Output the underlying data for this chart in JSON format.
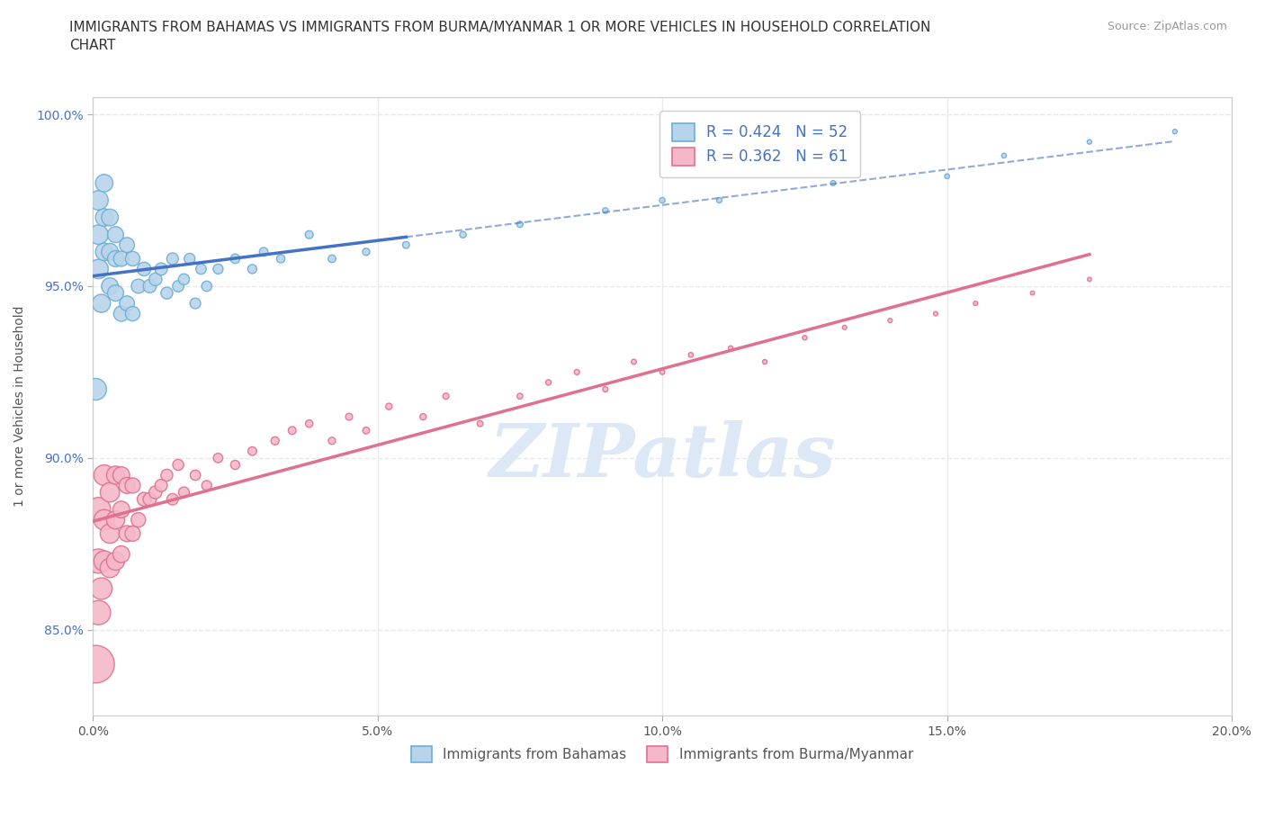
{
  "title": "IMMIGRANTS FROM BAHAMAS VS IMMIGRANTS FROM BURMA/MYANMAR 1 OR MORE VEHICLES IN HOUSEHOLD CORRELATION\nCHART",
  "source_text": "Source: ZipAtlas.com",
  "ylabel": "1 or more Vehicles in Household",
  "x_min": 0.0,
  "x_max": 0.2,
  "y_min": 0.825,
  "y_max": 1.005,
  "x_ticks": [
    0.0,
    0.05,
    0.1,
    0.15,
    0.2
  ],
  "x_tick_labels": [
    "0.0%",
    "5.0%",
    "10.0%",
    "15.0%",
    "20.0%"
  ],
  "y_ticks": [
    0.85,
    0.9,
    0.95,
    1.0
  ],
  "y_tick_labels": [
    "85.0%",
    "90.0%",
    "95.0%",
    "100.0%"
  ],
  "series_bahamas": {
    "name": "Immigrants from Bahamas",
    "color": "#b8d4ea",
    "border_color": "#6baed6",
    "R": 0.424,
    "N": 52,
    "line_color": "#4472c4",
    "x": [
      0.0005,
      0.001,
      0.001,
      0.001,
      0.0015,
      0.002,
      0.002,
      0.002,
      0.003,
      0.003,
      0.003,
      0.004,
      0.004,
      0.004,
      0.005,
      0.005,
      0.006,
      0.006,
      0.007,
      0.007,
      0.008,
      0.009,
      0.01,
      0.011,
      0.012,
      0.013,
      0.014,
      0.015,
      0.016,
      0.017,
      0.018,
      0.019,
      0.02,
      0.022,
      0.025,
      0.028,
      0.03,
      0.033,
      0.038,
      0.042,
      0.048,
      0.055,
      0.065,
      0.075,
      0.09,
      0.1,
      0.11,
      0.13,
      0.15,
      0.16,
      0.175,
      0.19
    ],
    "y": [
      0.92,
      0.955,
      0.965,
      0.975,
      0.945,
      0.96,
      0.97,
      0.98,
      0.95,
      0.96,
      0.97,
      0.948,
      0.958,
      0.965,
      0.942,
      0.958,
      0.945,
      0.962,
      0.942,
      0.958,
      0.95,
      0.955,
      0.95,
      0.952,
      0.955,
      0.948,
      0.958,
      0.95,
      0.952,
      0.958,
      0.945,
      0.955,
      0.95,
      0.955,
      0.958,
      0.955,
      0.96,
      0.958,
      0.965,
      0.958,
      0.96,
      0.962,
      0.965,
      0.968,
      0.972,
      0.975,
      0.975,
      0.98,
      0.982,
      0.988,
      0.992,
      0.995
    ],
    "sizes": [
      200,
      160,
      160,
      160,
      140,
      130,
      130,
      130,
      120,
      120,
      120,
      110,
      110,
      110,
      100,
      100,
      95,
      95,
      90,
      90,
      85,
      80,
      75,
      70,
      65,
      60,
      58,
      55,
      52,
      50,
      48,
      46,
      45,
      42,
      38,
      35,
      32,
      30,
      27,
      25,
      22,
      20,
      18,
      16,
      14,
      13,
      12,
      11,
      10,
      10,
      9,
      9
    ]
  },
  "series_burma": {
    "name": "Immigrants from Burma/Myanmar",
    "color": "#f4b8c8",
    "border_color": "#e07090",
    "R": 0.362,
    "N": 61,
    "line_color": "#e07090",
    "x": [
      0.0005,
      0.001,
      0.001,
      0.001,
      0.0015,
      0.002,
      0.002,
      0.002,
      0.003,
      0.003,
      0.003,
      0.004,
      0.004,
      0.004,
      0.005,
      0.005,
      0.005,
      0.006,
      0.006,
      0.007,
      0.007,
      0.008,
      0.009,
      0.01,
      0.011,
      0.012,
      0.013,
      0.014,
      0.015,
      0.016,
      0.018,
      0.02,
      0.022,
      0.025,
      0.028,
      0.032,
      0.035,
      0.038,
      0.042,
      0.045,
      0.048,
      0.052,
      0.058,
      0.062,
      0.068,
      0.075,
      0.08,
      0.085,
      0.09,
      0.095,
      0.1,
      0.105,
      0.112,
      0.118,
      0.125,
      0.132,
      0.14,
      0.148,
      0.155,
      0.165,
      0.175
    ],
    "y": [
      0.84,
      0.855,
      0.87,
      0.885,
      0.862,
      0.87,
      0.882,
      0.895,
      0.868,
      0.878,
      0.89,
      0.87,
      0.882,
      0.895,
      0.872,
      0.885,
      0.895,
      0.878,
      0.892,
      0.878,
      0.892,
      0.882,
      0.888,
      0.888,
      0.89,
      0.892,
      0.895,
      0.888,
      0.898,
      0.89,
      0.895,
      0.892,
      0.9,
      0.898,
      0.902,
      0.905,
      0.908,
      0.91,
      0.905,
      0.912,
      0.908,
      0.915,
      0.912,
      0.918,
      0.91,
      0.918,
      0.922,
      0.925,
      0.92,
      0.928,
      0.925,
      0.93,
      0.932,
      0.928,
      0.935,
      0.938,
      0.94,
      0.942,
      0.945,
      0.948,
      0.952
    ],
    "sizes": [
      600,
      250,
      250,
      250,
      200,
      180,
      180,
      180,
      160,
      160,
      160,
      140,
      140,
      140,
      120,
      120,
      120,
      110,
      110,
      100,
      100,
      90,
      80,
      75,
      70,
      65,
      60,
      55,
      52,
      50,
      45,
      42,
      38,
      35,
      32,
      28,
      26,
      24,
      22,
      21,
      20,
      18,
      17,
      16,
      15,
      14,
      13,
      12,
      12,
      11,
      10,
      10,
      9,
      9,
      9,
      8,
      8,
      8,
      8,
      7,
      7
    ]
  },
  "legend_R_color": "#4472c4",
  "watermark_text": "ZIPatlas",
  "watermark_color": "#dce8f5",
  "background_color": "#ffffff",
  "grid_color": "#e8e8e8",
  "title_fontsize": 11,
  "axis_label_fontsize": 10,
  "tick_fontsize": 10,
  "legend_fontsize": 12
}
